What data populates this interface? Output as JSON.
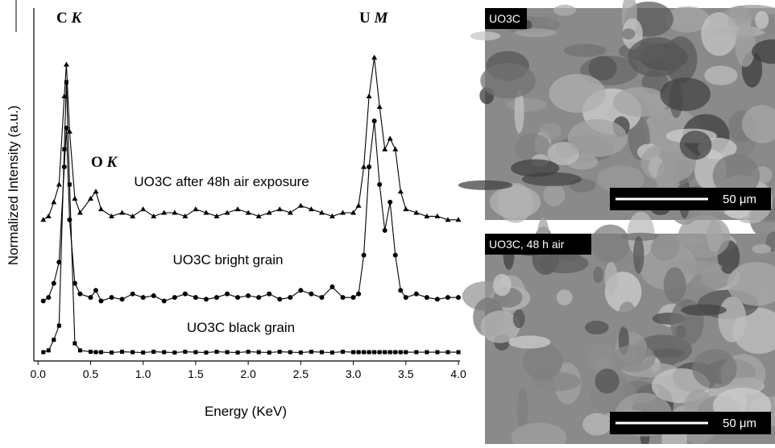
{
  "chart_data": {
    "type": "line",
    "x_label": "Energy (KeV)",
    "y_label": "Normalized Intensity (a.u.)",
    "xlim": [
      -0.04,
      4.0
    ],
    "ylim": [
      0,
      100
    ],
    "xticks": [
      {
        "value": 0,
        "label": "0.0"
      },
      {
        "value": 0.5,
        "label": "0.5"
      },
      {
        "value": 1,
        "label": "1.0"
      },
      {
        "value": 1.5,
        "label": "1.5"
      },
      {
        "value": 2,
        "label": "2.0"
      },
      {
        "value": 2.5,
        "label": "2.5"
      },
      {
        "value": 3,
        "label": "3.0"
      },
      {
        "value": 3.5,
        "label": "3.5"
      },
      {
        "value": 4,
        "label": "4.0"
      }
    ],
    "x": [
      0.05,
      0.1,
      0.15,
      0.2,
      0.25,
      0.27,
      0.3,
      0.35,
      0.4,
      0.5,
      0.55,
      0.6,
      0.7,
      0.8,
      0.9,
      1.0,
      1.1,
      1.2,
      1.3,
      1.4,
      1.5,
      1.6,
      1.7,
      1.8,
      1.9,
      2.0,
      2.1,
      2.2,
      2.3,
      2.4,
      2.5,
      2.6,
      2.7,
      2.8,
      2.9,
      3.0,
      3.05,
      3.1,
      3.15,
      3.2,
      3.25,
      3.3,
      3.35,
      3.4,
      3.45,
      3.5,
      3.6,
      3.7,
      3.8,
      3.9,
      4.0
    ],
    "series": [
      {
        "name": "UO3C after 48h air exposure",
        "color": "#000000",
        "marker": "triangle",
        "values": [
          40,
          41,
          45,
          50,
          75,
          84,
          65,
          46,
          42,
          46,
          48,
          43,
          41,
          42,
          41,
          43,
          41,
          42,
          42,
          41,
          43,
          42,
          41,
          42,
          43,
          42,
          41,
          42,
          43,
          42,
          44,
          43,
          42,
          41,
          42,
          42,
          44,
          55,
          75,
          86,
          72,
          60,
          63,
          60,
          48,
          43,
          42,
          41,
          41,
          40,
          40
        ]
      },
      {
        "name": "UO3C bright grain",
        "color": "#000000",
        "marker": "circle",
        "values": [
          17,
          18,
          22,
          28,
          55,
          66,
          40,
          22,
          19,
          18,
          20,
          17,
          18,
          17.5,
          19,
          18,
          18.5,
          17,
          18,
          19,
          18,
          17.5,
          18,
          19,
          18,
          18.5,
          18,
          19,
          17.5,
          18,
          20,
          19,
          18,
          21,
          18,
          18,
          19,
          30,
          55,
          68,
          50,
          37,
          45,
          30,
          20,
          18,
          19,
          18,
          17.5,
          18,
          18
        ]
      },
      {
        "name": "UO3C black grain",
        "color": "#000000",
        "marker": "square",
        "values": [
          2.5,
          3,
          6,
          10,
          60,
          79,
          50,
          5,
          3,
          2.6,
          2.5,
          2.5,
          2.4,
          2.6,
          2.5,
          2.4,
          2.6,
          2.5,
          2.4,
          2.6,
          2.5,
          2.4,
          2.6,
          2.5,
          2.4,
          2.6,
          2.5,
          2.4,
          2.6,
          2.5,
          2.4,
          2.6,
          2.5,
          2.4,
          2.6,
          2.5,
          2.5,
          2.5,
          2.5,
          2.5,
          2.5,
          2.5,
          2.5,
          2.5,
          2.5,
          2.5,
          2.5,
          2.5,
          2.5,
          2.5,
          2.5
        ]
      }
    ],
    "annotations": [
      {
        "element": "C",
        "line": "K"
      },
      {
        "element": "O",
        "line": "K"
      },
      {
        "element": "U",
        "line": "M"
      }
    ]
  },
  "images": [
    {
      "label": "UO3C",
      "scale_bar": "50 μm"
    },
    {
      "label": "UO3C, 48 h air",
      "scale_bar": "50 μm"
    }
  ]
}
